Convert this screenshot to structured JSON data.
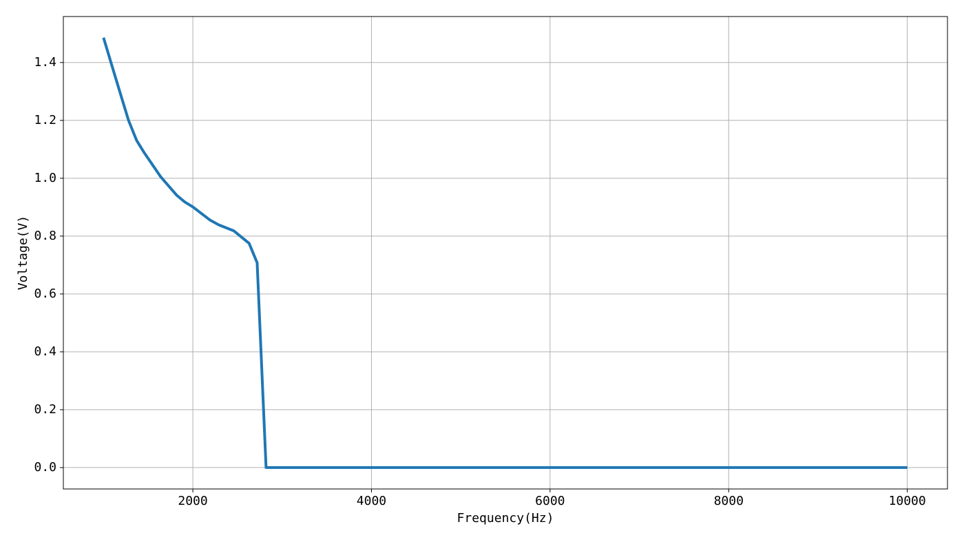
{
  "chart_data": {
    "type": "line",
    "x_label": "Frequency(Hz)",
    "y_label": "Voltage(V)",
    "x": [
      1000,
      1090,
      1200,
      1280,
      1370,
      1450,
      1640,
      1820,
      1910,
      2000,
      2190,
      2290,
      2460,
      2630,
      2720,
      2820,
      4000,
      6000,
      8000,
      10000
    ],
    "series": [
      {
        "name": "Voltage",
        "color": "#1f77b4",
        "values": [
          1.486,
          1.393,
          1.281,
          1.2,
          1.131,
          1.091,
          1.005,
          0.941,
          0.918,
          0.901,
          0.856,
          0.839,
          0.818,
          0.775,
          0.708,
          0,
          0,
          0,
          0,
          0
        ]
      }
    ],
    "xlim": [
      550,
      10450
    ],
    "ylim": [
      -0.074,
      1.559
    ],
    "xticks": [
      2000,
      4000,
      6000,
      8000,
      10000
    ],
    "yticks": [
      {
        "value": 0,
        "label": "0.0"
      },
      0.2,
      0.4,
      0.6,
      0.8,
      {
        "value": 1,
        "label": "1.0"
      },
      1.2,
      1.4
    ],
    "grid": true
  }
}
